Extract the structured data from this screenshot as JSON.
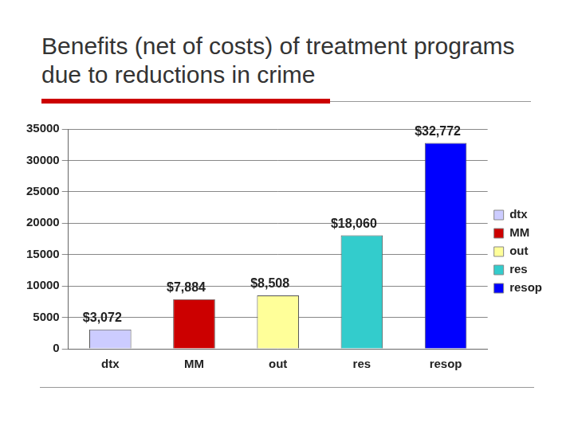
{
  "chart_data": {
    "type": "bar",
    "title": "Benefits (net of costs) of treatment programs due to reductions in crime",
    "categories": [
      "dtx",
      "MM",
      "out",
      "res",
      "resop"
    ],
    "values": [
      3072,
      7884,
      8508,
      18060,
      32772
    ],
    "value_labels": [
      "$3,072",
      "$7,884",
      "$8,508",
      "$18,060",
      "$32,772"
    ],
    "colors": [
      "#ccccff",
      "#cc0000",
      "#ffff99",
      "#33cccc",
      "#0000ff"
    ],
    "ylim": [
      0,
      35000
    ],
    "yticks": [
      0,
      5000,
      10000,
      15000,
      20000,
      25000,
      30000,
      35000
    ],
    "grid": true,
    "legend": "right",
    "data_labels": true
  }
}
